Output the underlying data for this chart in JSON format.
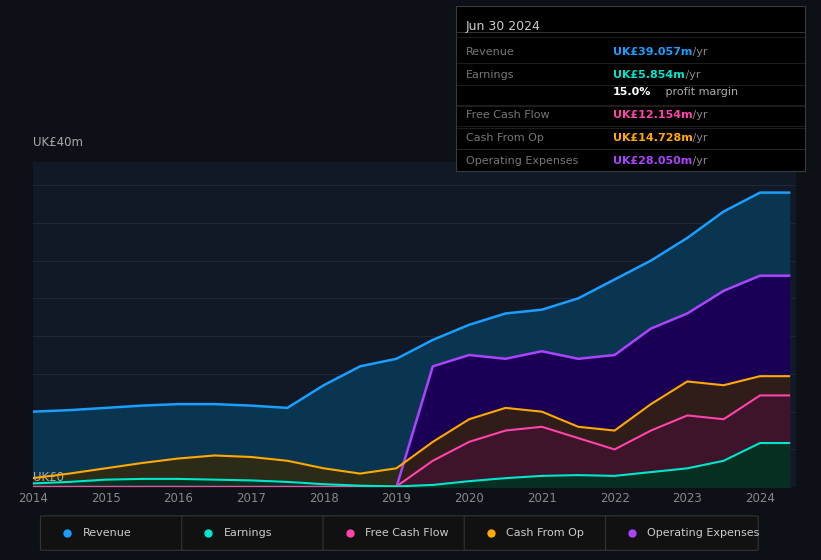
{
  "bg_color": "#0d1117",
  "plot_bg_color": "#111927",
  "title": "Jun 30 2024",
  "ylabel": "UK£40m",
  "ylabel0": "UK£0",
  "info_box_title": "Jun 30 2024",
  "info_rows": [
    {
      "label": "Revenue",
      "value": "UK£39.057m",
      "value_color": "#1a9eff"
    },
    {
      "label": "Earnings",
      "value": "UK£5.854m",
      "value_color": "#00e5cc"
    },
    {
      "label": "",
      "value": "15.0%",
      "value_color": "#ffffff",
      "suffix": " profit margin",
      "suffix_color": "#aaaaaa"
    },
    {
      "label": "Free Cash Flow",
      "value": "UK£12.154m",
      "value_color": "#ff44aa"
    },
    {
      "label": "Cash From Op",
      "value": "UK£14.728m",
      "value_color": "#ffaa00"
    },
    {
      "label": "Operating Expenses",
      "value": "UK£28.050m",
      "value_color": "#aa44ff"
    }
  ],
  "years": [
    2014,
    2014.5,
    2015,
    2015.5,
    2016,
    2016.5,
    2017,
    2017.5,
    2018,
    2018.5,
    2019,
    2019.5,
    2020,
    2020.5,
    2021,
    2021.5,
    2022,
    2022.5,
    2023,
    2023.5,
    2024,
    2024.4
  ],
  "revenue": [
    10.0,
    10.2,
    10.5,
    10.8,
    11.0,
    11.0,
    10.8,
    10.5,
    13.5,
    16.0,
    17.0,
    19.5,
    21.5,
    23.0,
    23.5,
    25.0,
    27.5,
    30.0,
    33.0,
    36.5,
    39.0,
    39.0
  ],
  "earnings": [
    0.5,
    0.7,
    1.0,
    1.1,
    1.1,
    1.0,
    0.9,
    0.7,
    0.4,
    0.2,
    0.1,
    0.3,
    0.8,
    1.2,
    1.5,
    1.6,
    1.5,
    2.0,
    2.5,
    3.5,
    5.85,
    5.85
  ],
  "free_cash_flow": [
    0.05,
    0.05,
    0.05,
    0.05,
    0.05,
    0.05,
    0.05,
    0.05,
    0.05,
    0.05,
    0.1,
    3.5,
    6.0,
    7.5,
    8.0,
    6.5,
    5.0,
    7.5,
    9.5,
    9.0,
    12.15,
    12.15
  ],
  "cash_from_op": [
    1.2,
    1.8,
    2.5,
    3.2,
    3.8,
    4.2,
    4.0,
    3.5,
    2.5,
    1.8,
    2.5,
    6.0,
    9.0,
    10.5,
    10.0,
    8.0,
    7.5,
    11.0,
    14.0,
    13.5,
    14.7,
    14.7
  ],
  "op_expenses": [
    0,
    0,
    0,
    0,
    0,
    0,
    0,
    0,
    0,
    0,
    0,
    16.0,
    17.5,
    17.0,
    18.0,
    17.0,
    17.5,
    21.0,
    23.0,
    26.0,
    28.0,
    28.0
  ],
  "x_ticks": [
    2014,
    2015,
    2016,
    2017,
    2018,
    2019,
    2020,
    2021,
    2022,
    2023,
    2024
  ],
  "ylim": [
    0,
    43
  ],
  "grid_color": "#1e2d3d",
  "revenue_color": "#1a9eff",
  "earnings_color": "#00e5cc",
  "fcf_color": "#ff44aa",
  "cfop_color": "#ffaa00",
  "opex_color": "#aa44ff",
  "revenue_fill": "#0a3550",
  "earnings_fill": "#003322",
  "fcf_fill": "#441133",
  "cfop_fill": "#3a2800",
  "opex_fill": "#1a0055",
  "legend_items": [
    {
      "label": "Revenue",
      "color": "#1a9eff"
    },
    {
      "label": "Earnings",
      "color": "#00e5cc"
    },
    {
      "label": "Free Cash Flow",
      "color": "#ff44aa"
    },
    {
      "label": "Cash From Op",
      "color": "#ffaa00"
    },
    {
      "label": "Operating Expenses",
      "color": "#aa44ff"
    }
  ]
}
